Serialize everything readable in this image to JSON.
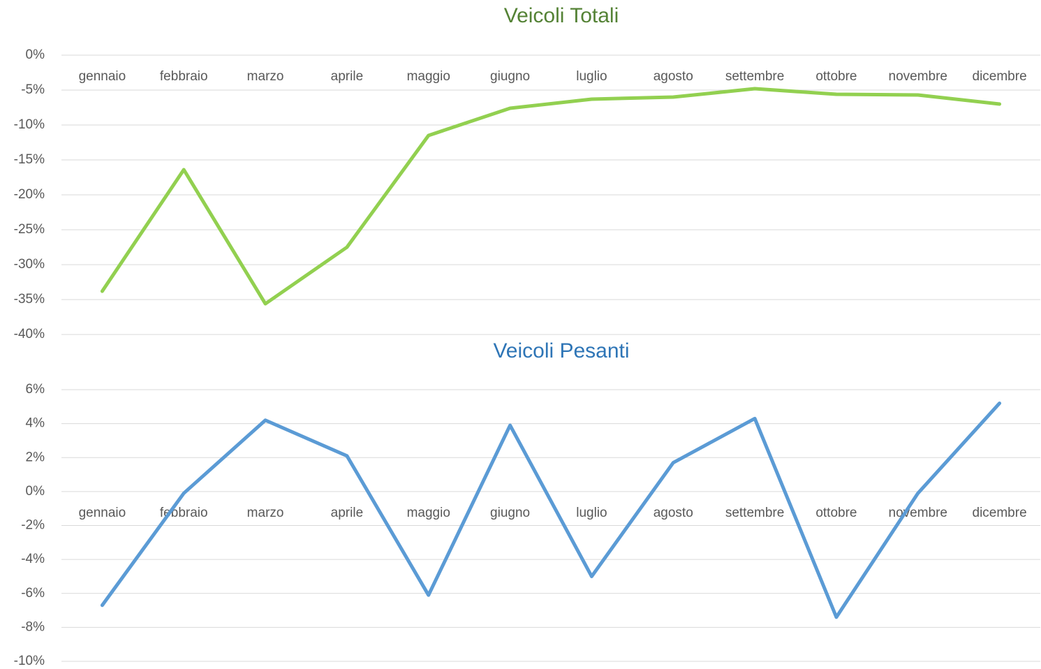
{
  "chart_data": [
    {
      "type": "line",
      "title": "Veicoli Totali",
      "title_color": "#548235",
      "categories": [
        "gennaio",
        "febbraio",
        "marzo",
        "aprile",
        "maggio",
        "giugno",
        "luglio",
        "agosto",
        "settembre",
        "ottobre",
        "novembre",
        "dicembre"
      ],
      "series": [
        {
          "name": "Veicoli Totali",
          "color": "#92d050",
          "values": [
            -33.8,
            -16.4,
            -35.6,
            -27.5,
            -11.5,
            -7.6,
            -6.3,
            -6.0,
            -4.8,
            -5.6,
            -5.7,
            -7.0
          ]
        }
      ],
      "ylim": [
        -40,
        0
      ],
      "yticks": [
        {
          "value": 0,
          "label": "0%"
        },
        {
          "value": -5,
          "label": "-5%"
        },
        {
          "value": -10,
          "label": "-10%"
        },
        {
          "value": -15,
          "label": "-15%"
        },
        {
          "value": -20,
          "label": "-20%"
        },
        {
          "value": -25,
          "label": "-25%"
        },
        {
          "value": -30,
          "label": "-30%"
        },
        {
          "value": -35,
          "label": "-35%"
        },
        {
          "value": -40,
          "label": "-40%"
        }
      ],
      "grid": true
    },
    {
      "type": "line",
      "title": "Veicoli Pesanti",
      "title_color": "#2e75b6",
      "categories": [
        "gennaio",
        "febbraio",
        "marzo",
        "aprile",
        "maggio",
        "giugno",
        "luglio",
        "agosto",
        "settembre",
        "ottobre",
        "novembre",
        "dicembre"
      ],
      "series": [
        {
          "name": "Veicoli Pesanti",
          "color": "#5b9bd5",
          "values": [
            -6.7,
            -0.1,
            4.2,
            2.1,
            -6.1,
            3.9,
            -5.0,
            1.7,
            4.3,
            -7.4,
            -0.1,
            5.2
          ]
        }
      ],
      "ylim": [
        -10,
        6
      ],
      "yticks": [
        {
          "value": 6,
          "label": "6%"
        },
        {
          "value": 4,
          "label": "4%"
        },
        {
          "value": 2,
          "label": "2%"
        },
        {
          "value": 0,
          "label": "0%"
        },
        {
          "value": -2,
          "label": "-2%"
        },
        {
          "value": -4,
          "label": "-4%"
        },
        {
          "value": -6,
          "label": "-6%"
        },
        {
          "value": -8,
          "label": "-8%"
        },
        {
          "value": -10,
          "label": "-10%"
        }
      ],
      "grid": true
    }
  ]
}
